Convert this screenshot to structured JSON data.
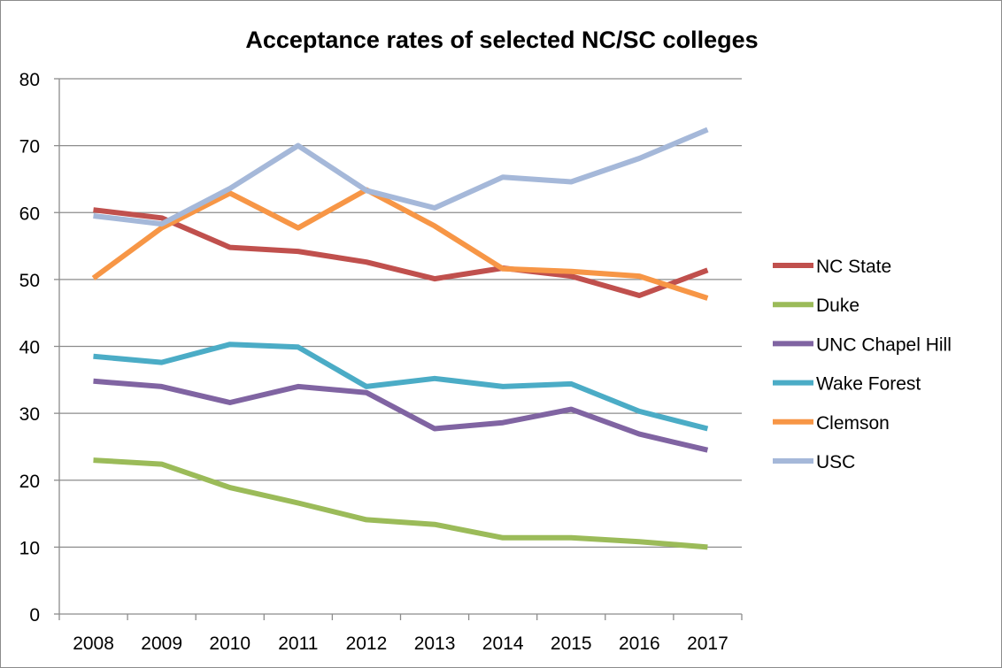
{
  "chart_data": {
    "type": "line",
    "title": "Acceptance rates of selected NC/SC colleges",
    "xlabel": "",
    "ylabel": "",
    "categories": [
      "2008",
      "2009",
      "2010",
      "2011",
      "2012",
      "2013",
      "2014",
      "2015",
      "2016",
      "2017"
    ],
    "ylim": [
      0,
      80
    ],
    "yticks": [
      0,
      10,
      20,
      30,
      40,
      50,
      60,
      70,
      80
    ],
    "grid": true,
    "legend_position": "right",
    "series": [
      {
        "name": "NC State",
        "color": "#c0504d",
        "values": [
          60.4,
          59.2,
          54.8,
          54.2,
          52.6,
          50.1,
          51.7,
          50.5,
          47.6,
          51.4
        ]
      },
      {
        "name": "Duke",
        "color": "#9bbb59",
        "values": [
          23.0,
          22.4,
          18.9,
          16.6,
          14.1,
          13.4,
          11.4,
          11.4,
          10.8,
          10.0
        ]
      },
      {
        "name": "UNC Chapel Hill",
        "color": "#8064a2",
        "values": [
          34.8,
          34.0,
          31.6,
          34.0,
          33.1,
          27.7,
          28.6,
          30.6,
          26.9,
          24.5
        ]
      },
      {
        "name": "Wake Forest",
        "color": "#4bacc6",
        "values": [
          38.5,
          37.6,
          40.3,
          39.9,
          34.0,
          35.2,
          34.0,
          34.4,
          30.3,
          27.7
        ]
      },
      {
        "name": "Clemson",
        "color": "#f79646",
        "values": [
          50.2,
          57.7,
          62.9,
          57.7,
          63.4,
          58.0,
          51.6,
          51.2,
          50.5,
          47.2
        ]
      },
      {
        "name": "USC",
        "color": "#a5b8d9",
        "values": [
          59.5,
          58.3,
          63.6,
          70.0,
          63.3,
          60.7,
          65.3,
          64.6,
          68.1,
          72.4
        ]
      }
    ]
  }
}
